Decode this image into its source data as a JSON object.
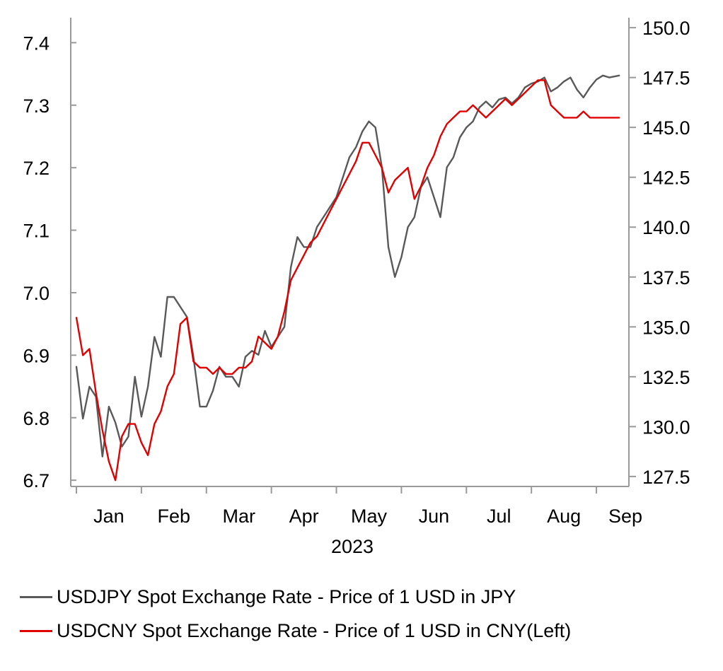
{
  "chart_data": {
    "type": "line",
    "title": "",
    "year_label": "2023",
    "x_categories": [
      "Jan",
      "Feb",
      "Mar",
      "Apr",
      "May",
      "Jun",
      "Jul",
      "Aug",
      "Sep"
    ],
    "left_axis": {
      "ylim": [
        6.69,
        7.44
      ],
      "ticks": [
        "6.7",
        "6.8",
        "6.9",
        "7.0",
        "7.1",
        "7.2",
        "7.3",
        "7.4"
      ]
    },
    "right_axis": {
      "ylim": [
        127.0,
        150.5
      ],
      "ticks": [
        "127.5",
        "130.0",
        "132.5",
        "135.0",
        "137.5",
        "140.0",
        "142.5",
        "145.0",
        "147.5",
        "150.0"
      ]
    },
    "series": [
      {
        "name": "USDJPY Spot Exchange Rate - Price of 1 USD in JPY",
        "axis": "right",
        "color": "#595959",
        "x": [
          0.0,
          0.1,
          0.2,
          0.3,
          0.4,
          0.5,
          0.6,
          0.7,
          0.8,
          0.9,
          1.0,
          1.1,
          1.2,
          1.3,
          1.4,
          1.5,
          1.6,
          1.7,
          1.8,
          1.9,
          2.0,
          2.1,
          2.2,
          2.3,
          2.4,
          2.5,
          2.6,
          2.7,
          2.8,
          2.9,
          3.0,
          3.1,
          3.2,
          3.3,
          3.4,
          3.5,
          3.6,
          3.7,
          3.8,
          3.9,
          4.0,
          4.1,
          4.2,
          4.3,
          4.4,
          4.5,
          4.6,
          4.7,
          4.8,
          4.9,
          5.0,
          5.1,
          5.2,
          5.3,
          5.4,
          5.5,
          5.6,
          5.7,
          5.8,
          5.9,
          6.0,
          6.1,
          6.2,
          6.3,
          6.4,
          6.5,
          6.6,
          6.7,
          6.8,
          6.9,
          7.0,
          7.1,
          7.2,
          7.3,
          7.4,
          7.5,
          7.6,
          7.7,
          7.8,
          7.9,
          8.0,
          8.1,
          8.2,
          8.35
        ],
        "values": [
          133.0,
          130.4,
          132.0,
          131.5,
          128.5,
          131.0,
          130.2,
          129.0,
          129.5,
          132.5,
          130.5,
          132.0,
          134.5,
          133.5,
          136.5,
          136.5,
          136.0,
          135.5,
          133.5,
          131.0,
          131.0,
          131.8,
          133.0,
          132.5,
          132.5,
          132.0,
          133.5,
          133.8,
          133.6,
          134.8,
          134.0,
          134.5,
          135.0,
          138.0,
          139.5,
          139.0,
          139.0,
          140.0,
          140.5,
          141.0,
          141.5,
          142.5,
          143.5,
          144.0,
          144.8,
          145.3,
          145.0,
          143.0,
          139.0,
          137.5,
          138.5,
          140.0,
          140.5,
          142.0,
          142.5,
          141.5,
          140.5,
          143.0,
          143.5,
          144.5,
          145.0,
          145.3,
          146.0,
          146.3,
          146.0,
          146.4,
          146.5,
          146.2,
          146.5,
          147.0,
          147.2,
          147.3,
          147.5,
          146.8,
          147.0,
          147.3,
          147.5,
          146.9,
          146.5,
          147.0,
          147.4,
          147.6,
          147.5,
          147.6
        ],
        "x_note": "x in month units (0 = start of Jan axis)"
      },
      {
        "name": "USDCNY Spot Exchange Rate - Price of 1 USD in CNY(Left)",
        "axis": "left",
        "color": "#e00000",
        "x": [
          0.0,
          0.1,
          0.2,
          0.3,
          0.4,
          0.5,
          0.6,
          0.7,
          0.8,
          0.9,
          1.0,
          1.1,
          1.2,
          1.3,
          1.4,
          1.5,
          1.6,
          1.7,
          1.8,
          1.9,
          2.0,
          2.1,
          2.2,
          2.3,
          2.4,
          2.5,
          2.6,
          2.7,
          2.8,
          2.9,
          3.0,
          3.1,
          3.2,
          3.3,
          3.4,
          3.5,
          3.6,
          3.7,
          3.8,
          3.9,
          4.0,
          4.1,
          4.2,
          4.3,
          4.4,
          4.5,
          4.6,
          4.7,
          4.8,
          4.9,
          5.0,
          5.1,
          5.2,
          5.3,
          5.4,
          5.5,
          5.6,
          5.7,
          5.8,
          5.9,
          6.0,
          6.1,
          6.2,
          6.3,
          6.4,
          6.5,
          6.6,
          6.7,
          6.8,
          6.9,
          7.0,
          7.1,
          7.2,
          7.3,
          7.4,
          7.5,
          7.6,
          7.7,
          7.8,
          7.9,
          8.0,
          8.1,
          8.2,
          8.35
        ],
        "values": [
          6.96,
          6.9,
          6.91,
          6.84,
          6.78,
          6.73,
          6.7,
          6.77,
          6.79,
          6.79,
          6.76,
          6.74,
          6.79,
          6.81,
          6.85,
          6.87,
          6.95,
          6.96,
          6.89,
          6.88,
          6.88,
          6.87,
          6.88,
          6.87,
          6.87,
          6.88,
          6.88,
          6.89,
          6.93,
          6.92,
          6.91,
          6.93,
          6.97,
          7.02,
          7.04,
          7.06,
          7.08,
          7.09,
          7.11,
          7.13,
          7.15,
          7.17,
          7.19,
          7.21,
          7.24,
          7.24,
          7.22,
          7.2,
          7.16,
          7.18,
          7.19,
          7.2,
          7.15,
          7.17,
          7.2,
          7.22,
          7.25,
          7.27,
          7.28,
          7.29,
          7.29,
          7.3,
          7.29,
          7.28,
          7.29,
          7.3,
          7.31,
          7.3,
          7.31,
          7.32,
          7.33,
          7.34,
          7.34,
          7.3,
          7.29,
          7.28,
          7.28,
          7.28,
          7.29,
          7.28,
          7.28,
          7.28,
          7.28,
          7.28
        ],
        "x_note": "x in month units (0 = start of Jan axis)"
      }
    ]
  }
}
